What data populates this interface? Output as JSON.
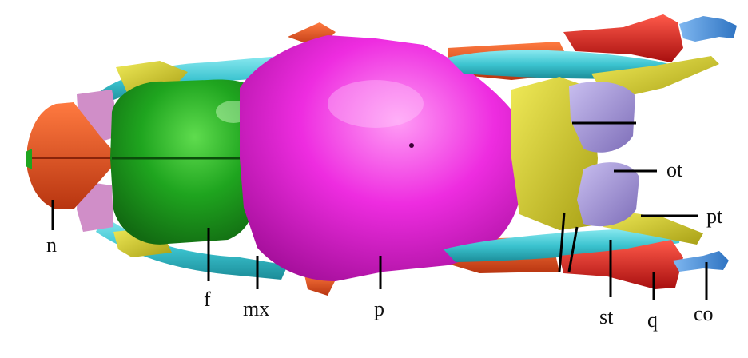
{
  "figure": {
    "labels": {
      "n": "n",
      "f": "f",
      "mx": "mx",
      "p": "p",
      "st": "st",
      "q": "q",
      "co": "co",
      "ot": "ot",
      "pt": "pt"
    },
    "colors": {
      "nasal": "#e2461c",
      "frontal": "#1fa51f",
      "parietal": "#e619d8",
      "maxilla": "#3cc4d0",
      "yellow_bone": "#d8d22a",
      "otic": "#a394cf",
      "quadrate": "#d61a1a",
      "columella": "#4a8fd6",
      "pink": "#d08ec8",
      "dark_orange": "#d84a12"
    }
  }
}
